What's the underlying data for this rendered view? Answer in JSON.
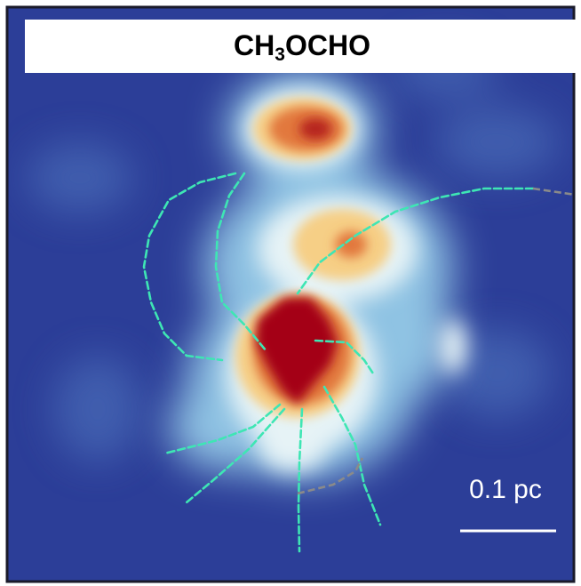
{
  "title": {
    "main": "CH",
    "subscript": "3",
    "rest": "OCHO"
  },
  "scale_bar": {
    "label": "0.1 pc"
  }
}
